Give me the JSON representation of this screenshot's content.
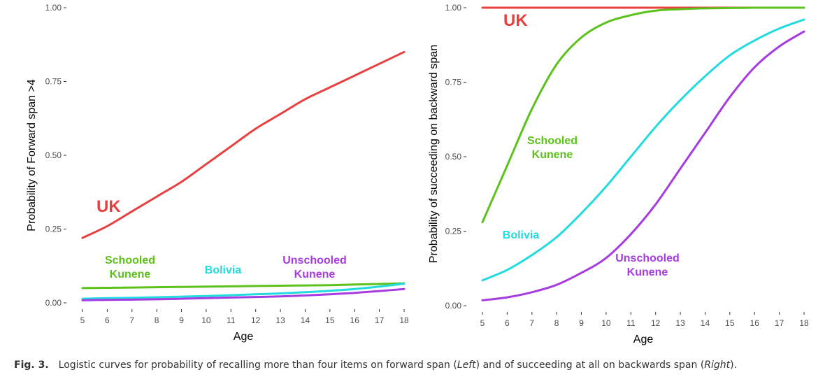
{
  "chart_data": [
    {
      "type": "line",
      "panel": "Left",
      "xlabel": "Age",
      "ylabel": "Probability of Forward span >4",
      "xlim": [
        5,
        18
      ],
      "ylim": [
        0,
        1
      ],
      "xticks": [
        "5",
        "6",
        "7",
        "8",
        "9",
        "10",
        "11",
        "12",
        "13",
        "14",
        "15",
        "16",
        "17",
        "18"
      ],
      "yticks": [
        "0.00",
        "0.25",
        "0.50",
        "0.75",
        "1.00"
      ],
      "x": [
        5,
        6,
        7,
        8,
        9,
        10,
        11,
        12,
        13,
        14,
        15,
        16,
        17,
        18
      ],
      "series": [
        {
          "name": "UK",
          "color": "#e8403f",
          "values": [
            0.22,
            0.26,
            0.31,
            0.36,
            0.41,
            0.47,
            0.53,
            0.59,
            0.64,
            0.69,
            0.73,
            0.77,
            0.81,
            0.85
          ],
          "label": "UK"
        },
        {
          "name": "Schooled Kunene",
          "color": "#5cc21b",
          "values": [
            0.05,
            0.051,
            0.052,
            0.053,
            0.054,
            0.055,
            0.056,
            0.057,
            0.058,
            0.059,
            0.06,
            0.062,
            0.064,
            0.066
          ],
          "label": "Schooled\nKunene"
        },
        {
          "name": "Bolivia",
          "color": "#22dbe0",
          "values": [
            0.014,
            0.016,
            0.017,
            0.019,
            0.021,
            0.023,
            0.026,
            0.029,
            0.032,
            0.036,
            0.041,
            0.047,
            0.055,
            0.065
          ],
          "label": "Bolivia"
        },
        {
          "name": "Unschooled Kunene",
          "color": "#a63ce0",
          "values": [
            0.009,
            0.01,
            0.011,
            0.012,
            0.014,
            0.016,
            0.018,
            0.02,
            0.022,
            0.025,
            0.029,
            0.034,
            0.04,
            0.047
          ],
          "label": "Unschooled\nKunene"
        }
      ]
    },
    {
      "type": "line",
      "panel": "Right",
      "xlabel": "Age",
      "ylabel": "Probability of succeeding on backward span",
      "xlim": [
        5,
        18
      ],
      "ylim": [
        0,
        1
      ],
      "xticks": [
        "5",
        "6",
        "7",
        "8",
        "9",
        "10",
        "11",
        "12",
        "13",
        "14",
        "15",
        "16",
        "17",
        "18"
      ],
      "yticks": [
        "0.00",
        "0.25",
        "0.50",
        "0.75",
        "1.00"
      ],
      "x": [
        5,
        6,
        7,
        8,
        9,
        10,
        11,
        12,
        13,
        14,
        15,
        16,
        17,
        18
      ],
      "series": [
        {
          "name": "UK",
          "color": "#e8403f",
          "values": [
            1.0,
            1.0,
            1.0,
            1.0,
            1.0,
            1.0,
            1.0,
            1.0,
            1.0,
            1.0,
            1.0,
            1.0,
            1.0,
            1.0
          ],
          "label": "UK"
        },
        {
          "name": "Schooled Kunene",
          "color": "#5cc21b",
          "values": [
            0.28,
            0.47,
            0.66,
            0.81,
            0.9,
            0.95,
            0.975,
            0.99,
            0.995,
            0.998,
            0.999,
            1.0,
            1.0,
            1.0
          ],
          "label": "Schooled\nKunene"
        },
        {
          "name": "Bolivia",
          "color": "#22dbe0",
          "values": [
            0.085,
            0.12,
            0.17,
            0.23,
            0.31,
            0.4,
            0.5,
            0.6,
            0.69,
            0.77,
            0.84,
            0.89,
            0.93,
            0.96
          ],
          "label": "Bolivia"
        },
        {
          "name": "Unschooled Kunene",
          "color": "#a63ce0",
          "values": [
            0.018,
            0.028,
            0.045,
            0.07,
            0.11,
            0.16,
            0.24,
            0.34,
            0.46,
            0.58,
            0.7,
            0.8,
            0.87,
            0.92
          ],
          "label": "Unschooled\nKunene"
        }
      ]
    }
  ],
  "caption": {
    "figure_number": "Fig. 3.",
    "text": "Logistic curves for probability of recalling more than four items on forward span (Left) and of succeeding at all on backwards span (Right)."
  }
}
